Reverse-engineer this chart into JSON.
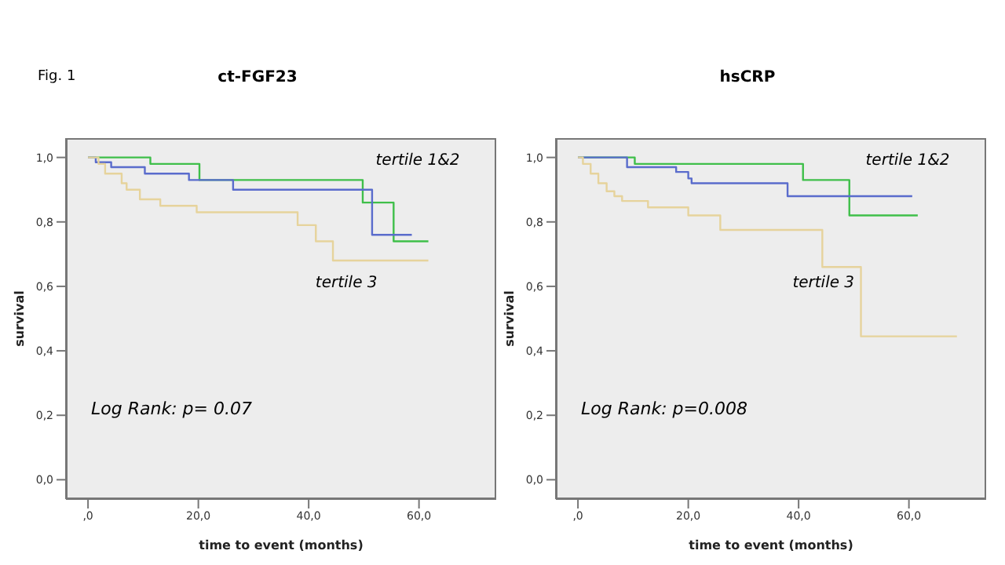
{
  "chart_data": [
    {
      "type": "step",
      "title": "ct-FGF23",
      "xlabel": "time to event (months)",
      "ylabel": "survival",
      "xlim": [
        -4,
        74
      ],
      "ylim": [
        -0.06,
        1.06
      ],
      "xticks": [
        {
          "value": 0,
          "label": ",0"
        },
        {
          "value": 20,
          "label": "20,0"
        },
        {
          "value": 40,
          "label": "40,0"
        },
        {
          "value": 60,
          "label": "60,0"
        }
      ],
      "yticks": [
        {
          "value": 0,
          "label": "0,0"
        },
        {
          "value": 0.2,
          "label": "0,2"
        },
        {
          "value": 0.4,
          "label": "0,4"
        },
        {
          "value": 0.6,
          "label": "0,6"
        },
        {
          "value": 0.8,
          "label": "0,8"
        },
        {
          "value": 1,
          "label": "1,0"
        }
      ],
      "marker": "none",
      "line_style": "solid",
      "annotations": [
        "Fig. 1",
        "tertile 1&2",
        "tertile 3",
        "Log Rank: p= 0.07"
      ],
      "series": [
        {
          "color": "#3fbf4a",
          "x": [
            0,
            11.3,
            20.2,
            49.8,
            55.4,
            61.7
          ],
          "values": [
            1,
            0.98,
            0.93,
            0.86,
            0.74,
            0.74
          ]
        },
        {
          "color": "#5a6ccc",
          "x": [
            0,
            1.4,
            4.2,
            10.3,
            18.3,
            26.3,
            51.5,
            58.7
          ],
          "values": [
            1,
            0.985,
            0.97,
            0.95,
            0.93,
            0.9,
            0.76,
            0.76
          ]
        },
        {
          "color": "#e6d39c",
          "x": [
            0,
            1.9,
            3.1,
            6.1,
            7,
            9.4,
            13.1,
            19.7,
            38,
            41.3,
            44.4,
            61.7
          ],
          "values": [
            1,
            0.98,
            0.95,
            0.92,
            0.9,
            0.87,
            0.85,
            0.83,
            0.79,
            0.74,
            0.68,
            0.68
          ]
        }
      ]
    },
    {
      "type": "step",
      "title": "hsCRP",
      "xlabel": "time to event (months)",
      "ylabel": "survival",
      "xlim": [
        -4,
        74
      ],
      "ylim": [
        -0.06,
        1.06
      ],
      "xticks": [
        {
          "value": 0,
          "label": ",0"
        },
        {
          "value": 20,
          "label": "20,0"
        },
        {
          "value": 40,
          "label": "40,0"
        },
        {
          "value": 60,
          "label": "60,0"
        }
      ],
      "yticks": [
        {
          "value": 0,
          "label": "0,0"
        },
        {
          "value": 0.2,
          "label": "0,2"
        },
        {
          "value": 0.4,
          "label": "0,4"
        },
        {
          "value": 0.6,
          "label": "0,6"
        },
        {
          "value": 0.8,
          "label": "0,8"
        },
        {
          "value": 1,
          "label": "1,0"
        }
      ],
      "marker": "none",
      "line_style": "solid",
      "annotations": [
        "tertile 1&2",
        "tertile 3",
        "Log Rank: p=0.008"
      ],
      "series": [
        {
          "color": "#3fbf4a",
          "x": [
            0,
            10.3,
            40.8,
            49.2,
            61.6
          ],
          "values": [
            1,
            0.98,
            0.93,
            0.82,
            0.82
          ]
        },
        {
          "color": "#5a6ccc",
          "x": [
            0,
            8.9,
            17.8,
            20,
            20.6,
            38,
            60.6
          ],
          "values": [
            1,
            0.97,
            0.955,
            0.935,
            0.92,
            0.88,
            0.88
          ]
        },
        {
          "color": "#e6d39c",
          "x": [
            0,
            0.9,
            2.3,
            3.7,
            5.2,
            6.6,
            8,
            12.7,
            20,
            25.8,
            44.3,
            51.3,
            54.8,
            68.7
          ],
          "values": [
            1,
            0.98,
            0.95,
            0.92,
            0.895,
            0.88,
            0.865,
            0.845,
            0.82,
            0.775,
            0.66,
            0.445,
            0.445,
            0.445
          ]
        }
      ]
    }
  ]
}
